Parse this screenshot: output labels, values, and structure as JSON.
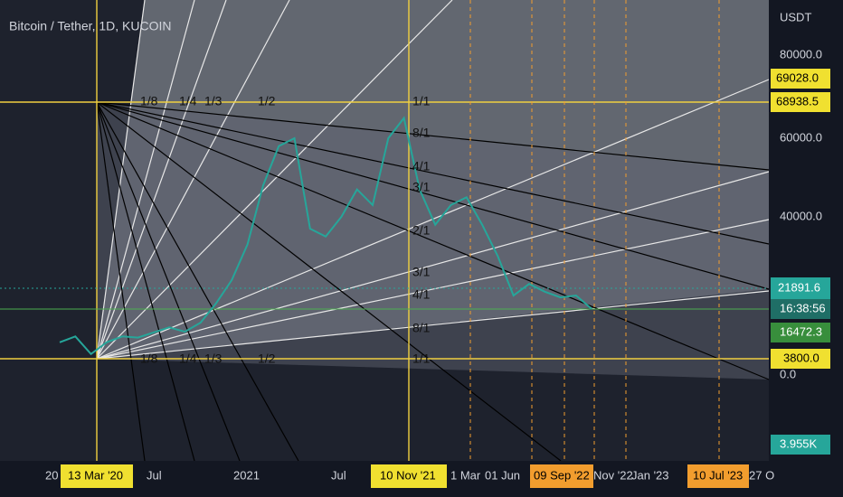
{
  "header": {
    "title": "Bitcoin / Tether, 1D, KUCOIN"
  },
  "price_axis": {
    "unit": "USDT",
    "labels": [
      "80000.0",
      "60000.0",
      "40000.0",
      "0.0"
    ],
    "badges": {
      "high_a": "69028.0",
      "high_b": "68938.5",
      "last": "21891.6",
      "countdown": "16:38:56",
      "level": "16472.3",
      "low": "3800.0",
      "volume": "3.955K"
    }
  },
  "time_axis": {
    "labels": [
      "20",
      "Jul",
      "2021",
      "Jul",
      "1 Mar",
      "01 Jun",
      "Nov '22",
      "Jan '23",
      "27 O"
    ],
    "badges": [
      "13 Mar '20",
      "10 Nov '21",
      "09 Sep '22",
      "10 Jul '23"
    ]
  },
  "fan_labels": {
    "top": [
      "1/8",
      "1/4",
      "1/3",
      "1/2",
      "1/1"
    ],
    "right": [
      "8/1",
      "4/1",
      "3/1",
      "2/1",
      "3/1",
      "4/1",
      "8/1",
      "1/1"
    ],
    "bottom": [
      "1/8",
      "1/4",
      "1/3",
      "1/2"
    ]
  },
  "price_path": {
    "values": [
      8000,
      9500,
      5000,
      8000,
      9500,
      9200,
      10500,
      11800,
      10700,
      13000,
      18000,
      24000,
      33000,
      48000,
      58000,
      60000,
      37000,
      35000,
      40000,
      47000,
      43000,
      60000,
      65000,
      47000,
      38000,
      43000,
      45000,
      38000,
      30000,
      20000,
      23000,
      21000,
      19500,
      20000,
      16500
    ]
  }
}
